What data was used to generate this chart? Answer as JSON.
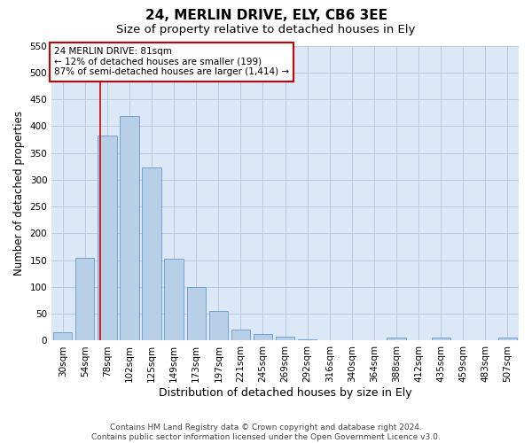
{
  "title": "24, MERLIN DRIVE, ELY, CB6 3EE",
  "subtitle": "Size of property relative to detached houses in Ely",
  "xlabel": "Distribution of detached houses by size in Ely",
  "ylabel": "Number of detached properties",
  "footer_line1": "Contains HM Land Registry data © Crown copyright and database right 2024.",
  "footer_line2": "Contains public sector information licensed under the Open Government Licence v3.0.",
  "categories": [
    "30sqm",
    "54sqm",
    "78sqm",
    "102sqm",
    "125sqm",
    "149sqm",
    "173sqm",
    "197sqm",
    "221sqm",
    "245sqm",
    "269sqm",
    "292sqm",
    "316sqm",
    "340sqm",
    "364sqm",
    "388sqm",
    "412sqm",
    "435sqm",
    "459sqm",
    "483sqm",
    "507sqm"
  ],
  "values": [
    15,
    155,
    383,
    418,
    323,
    152,
    100,
    55,
    20,
    12,
    8,
    3,
    0,
    0,
    0,
    5,
    0,
    5,
    0,
    0,
    5
  ],
  "bar_color": "#b8cfe8",
  "bar_edge_color": "#6699cc",
  "annotation_line1": "24 MERLIN DRIVE: 81sqm",
  "annotation_line2": "← 12% of detached houses are smaller (199)",
  "annotation_line3": "87% of semi-detached houses are larger (1,414) →",
  "annotation_box_color": "#ffffff",
  "annotation_box_edgecolor": "#cc0000",
  "vline_color": "#cc0000",
  "ylim": [
    0,
    550
  ],
  "yticks": [
    0,
    50,
    100,
    150,
    200,
    250,
    300,
    350,
    400,
    450,
    500,
    550
  ],
  "background_color": "#ffffff",
  "plot_bg_color": "#dce8f5",
  "grid_color": "#b8cce0",
  "title_fontsize": 11,
  "subtitle_fontsize": 9.5,
  "ylabel_fontsize": 8.5,
  "xlabel_fontsize": 9,
  "tick_fontsize": 7.5,
  "footer_fontsize": 6.5,
  "annotation_fontsize": 7.5
}
